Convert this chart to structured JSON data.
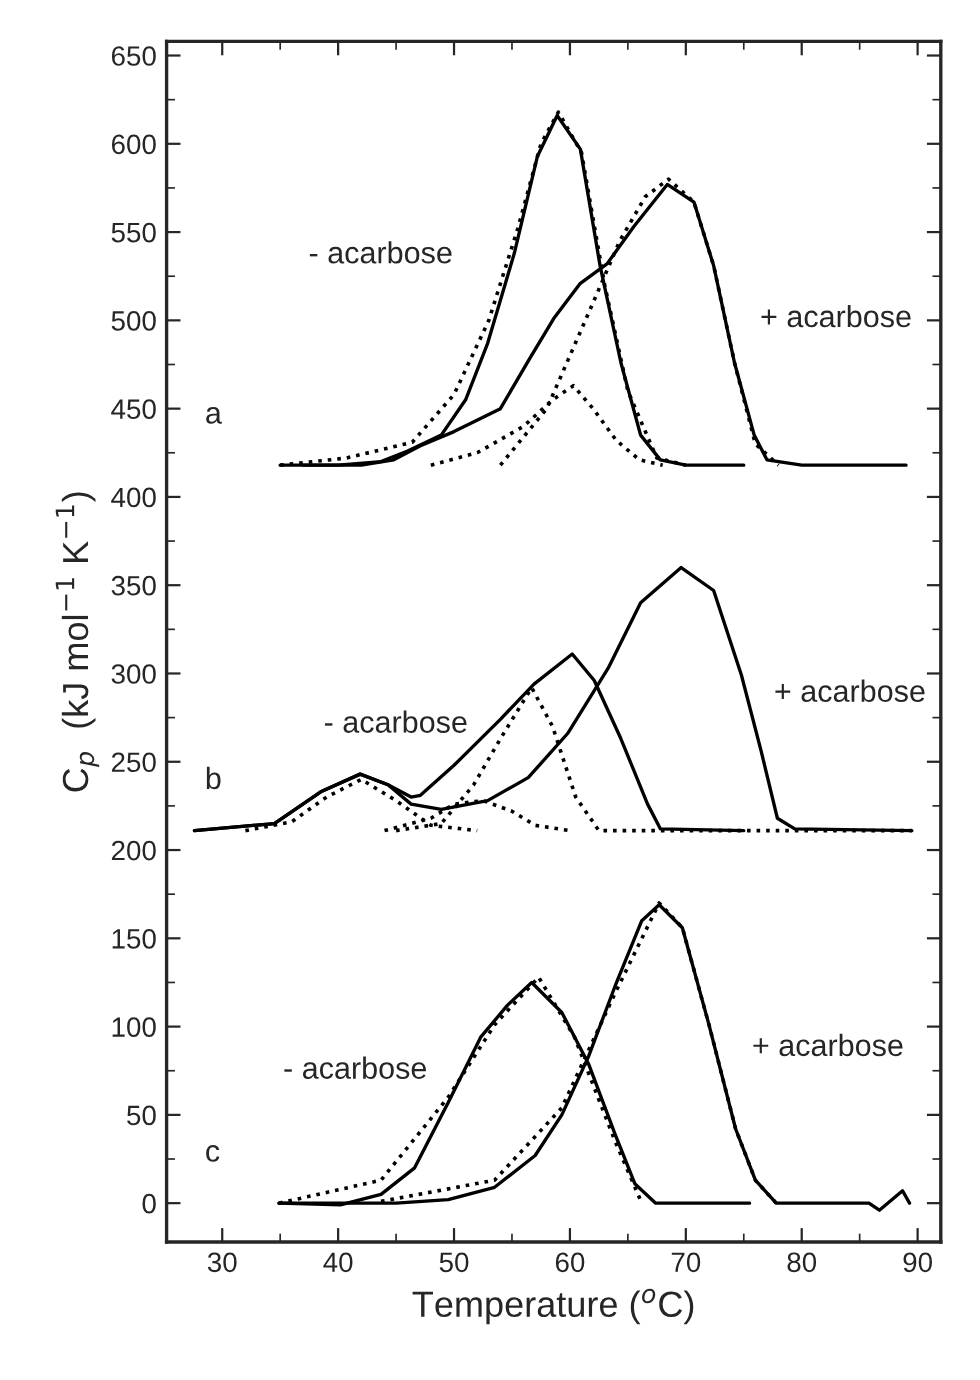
{
  "chart_data": {
    "type": "line",
    "xlabel": "Temperature ($^{o}$C)",
    "ylabel": "C$_{p}$  (kJ mol$^{−1}$ K$^{−1}$)",
    "xlim": [
      25.2,
      92
    ],
    "ylim": [
      -22,
      658
    ],
    "xticks": [
      30,
      40,
      50,
      60,
      70,
      80,
      90
    ],
    "yticks": [
      0,
      50,
      100,
      150,
      200,
      250,
      300,
      350,
      400,
      450,
      500,
      550,
      600,
      650
    ],
    "grid": false,
    "legend": false,
    "marker": "none",
    "annotations": [
      "a",
      "b",
      "c"
    ],
    "series": [
      {
        "name": "- acarbose",
        "color": "#000000",
        "line_style": "solid",
        "x": [
          35,
          40,
          43.7,
          46,
          48.9,
          51,
          52.9,
          55.2,
          57.2,
          58.9,
          60.9,
          62.6,
          64.4,
          66.1,
          67.8,
          70,
          75
        ],
        "values": [
          418,
          418,
          420,
          426,
          435,
          455,
          487,
          538,
          593,
          616,
          597,
          531,
          476,
          435,
          421,
          418,
          418
        ]
      },
      {
        "name": "+ acarbose",
        "color": "#000000",
        "line_style": "solid",
        "x": [
          37,
          42,
          44.8,
          47.1,
          50,
          54.0,
          56.5,
          58.6,
          60.9,
          63.2,
          65.5,
          68.4,
          70.7,
          72.4,
          74.2,
          75.9,
          77.0,
          80,
          85,
          89
        ],
        "values": [
          418,
          418,
          421,
          429,
          437,
          450,
          478,
          501,
          521,
          532,
          553,
          577,
          567,
          531,
          476,
          435,
          421,
          418,
          418,
          418
        ]
      },
      {
        "color": "#000000",
        "line_style": "dotted",
        "x": [
          35,
          40.7,
          46.4,
          50,
          53,
          55.5,
          57.5,
          59,
          61,
          63,
          65,
          67.5,
          70
        ],
        "values": [
          418,
          422,
          431,
          458,
          500,
          552,
          600,
          618,
          595,
          520,
          460,
          422,
          418
        ]
      },
      {
        "color": "#000000",
        "line_style": "dotted",
        "x": [
          48,
          52,
          56,
          58.5,
          60.3,
          62,
          64,
          66,
          68
        ],
        "values": [
          418,
          425,
          440,
          455,
          463,
          450,
          432,
          421,
          418
        ]
      },
      {
        "color": "#000000",
        "line_style": "dotted",
        "x": [
          54,
          58,
          61.4,
          64.3,
          66.5,
          68.5,
          70.7,
          72.4,
          74.2,
          76,
          78
        ],
        "values": [
          418,
          450,
          501,
          545,
          570,
          580,
          567,
          531,
          476,
          430,
          418
        ]
      },
      {
        "name": "- acarbose",
        "color": "#000000",
        "line_style": "solid",
        "x": [
          27.6,
          34.5,
          38.5,
          41.9,
          44.3,
          46.3,
          47.1,
          50.0,
          54.0,
          56.9,
          60.2,
          62.1,
          64.4,
          66.7,
          67.8,
          75
        ],
        "values": [
          211,
          215,
          233,
          243,
          237,
          230,
          231,
          248,
          274,
          294,
          311,
          296,
          263,
          226,
          212,
          211
        ]
      },
      {
        "name": "+ acarbose",
        "color": "#000000",
        "line_style": "solid",
        "x": [
          27.6,
          34.5,
          38.5,
          41.9,
          44.3,
          46.3,
          48.9,
          52.9,
          56.4,
          59.8,
          63.3,
          66.1,
          69.6,
          72.4,
          74.8,
          76.5,
          77.9,
          79.4,
          89.5
        ],
        "values": [
          211,
          215,
          233,
          243,
          237,
          226,
          223,
          228,
          241,
          266,
          303,
          340,
          360,
          347,
          299,
          256,
          218,
          212,
          211
        ]
      },
      {
        "color": "#000000",
        "line_style": "dotted",
        "x": [
          32,
          36,
          39,
          42,
          45,
          48,
          52
        ],
        "values": [
          211,
          216,
          230,
          240,
          228,
          214,
          211
        ]
      },
      {
        "color": "#000000",
        "line_style": "dotted",
        "x": [
          44,
          48,
          50,
          52.5,
          55,
          57,
          60
        ],
        "values": [
          211,
          218,
          226,
          228,
          222,
          214,
          211
        ]
      },
      {
        "color": "#000000",
        "line_style": "dotted",
        "x": [
          45,
          48.9,
          51.7,
          54,
          56.7,
          58.5,
          60.5,
          62.5,
          89.5
        ],
        "values": [
          211,
          215,
          237,
          263,
          292,
          270,
          230,
          211,
          211
        ]
      },
      {
        "name": "- acarbose",
        "color": "#000000",
        "line_style": "solid",
        "x": [
          34.9,
          40.2,
          43.7,
          46.6,
          49.5,
          52.3,
          54.6,
          56.7,
          59.3,
          61.6,
          63.9,
          65.6,
          67.4,
          75.5
        ],
        "values": [
          0,
          -1,
          5,
          20,
          57,
          94,
          112,
          125,
          108,
          79,
          39,
          11,
          0,
          0
        ]
      },
      {
        "name": "+ acarbose",
        "color": "#000000",
        "line_style": "solid",
        "x": [
          34.9,
          45,
          49.5,
          53.5,
          57.0,
          59.3,
          61.6,
          63.9,
          66.2,
          67.7,
          69.7,
          72.0,
          74.3,
          76.0,
          77.8,
          85.8,
          86.7,
          88.7,
          89.3
        ],
        "values": [
          0,
          0,
          2,
          9,
          27,
          50,
          83,
          123,
          160,
          169,
          156,
          101,
          42,
          13,
          0,
          0,
          -4,
          7,
          0
        ]
      },
      {
        "color": "#000000",
        "line_style": "dotted",
        "x": [
          34.9,
          43.7,
          49.5,
          53.5,
          57.3,
          60.4,
          63.9,
          66.2
        ],
        "values": [
          0,
          13,
          60,
          101,
          128,
          94,
          35,
          0
        ]
      },
      {
        "color": "#000000",
        "line_style": "dotted",
        "x": [
          43.7,
          53.5,
          59.3,
          63.9,
          67.7,
          69.7,
          72.0,
          74.3,
          76.0,
          77.8
        ],
        "values": [
          1,
          13,
          54,
          119,
          170,
          156,
          101,
          42,
          13,
          0
        ]
      }
    ]
  }
}
